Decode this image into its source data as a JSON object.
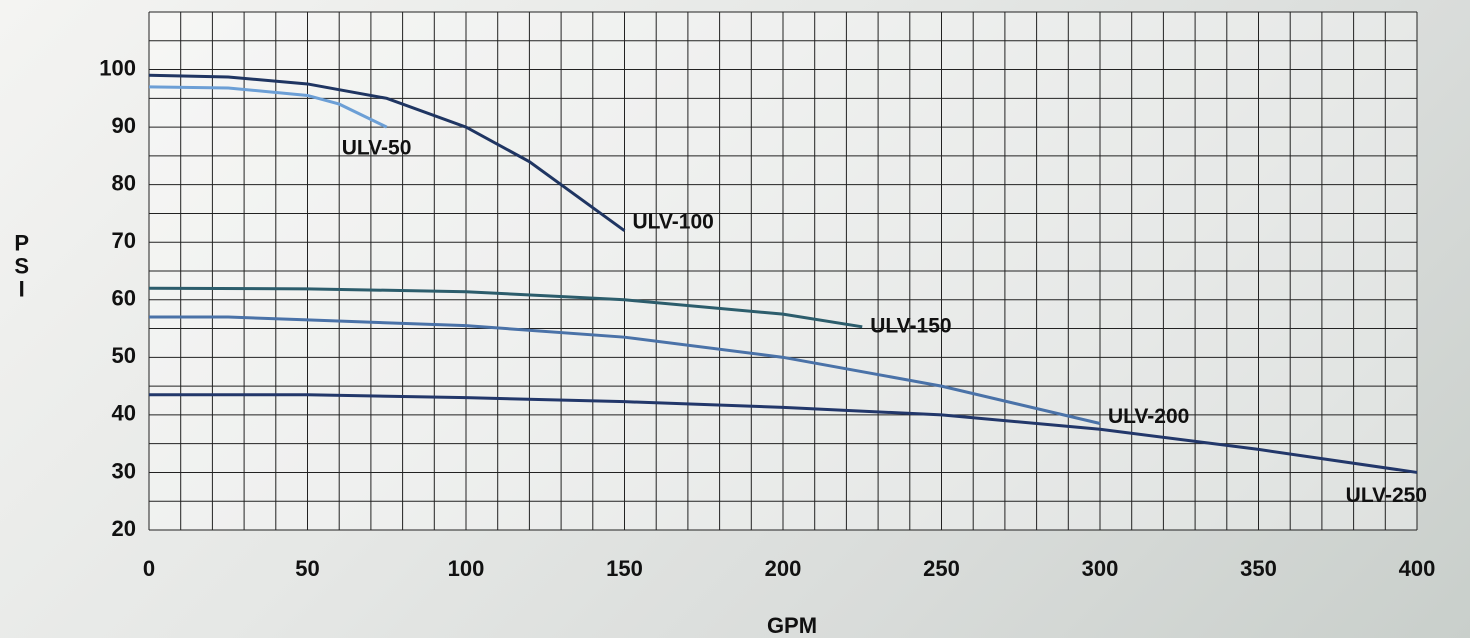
{
  "chart_data": {
    "type": "line",
    "x_label": "GPM",
    "y_label": "PSI",
    "xlim": [
      0,
      400
    ],
    "xticks": [
      0,
      50,
      100,
      150,
      200,
      250,
      300,
      350,
      400
    ],
    "ylim": [
      20,
      110
    ],
    "yticks": [
      20,
      30,
      40,
      50,
      60,
      70,
      80,
      90,
      100
    ],
    "grid": true,
    "minor_grid": {
      "x": 10,
      "y": 5
    },
    "series": [
      {
        "name": "ULV-50",
        "color": "#6c9fd6",
        "x": [
          0,
          25,
          50,
          60,
          75
        ],
        "values": [
          97,
          96.8,
          95.5,
          94,
          90
        ]
      },
      {
        "name": "ULV-100",
        "color": "#1f3562",
        "x": [
          0,
          25,
          50,
          75,
          100,
          120,
          135,
          150
        ],
        "values": [
          99,
          98.7,
          97.5,
          95,
          90,
          84,
          78,
          72
        ]
      },
      {
        "name": "ULV-150",
        "color": "#2c5d6c",
        "x": [
          0,
          50,
          100,
          150,
          200,
          225
        ],
        "values": [
          62,
          61.9,
          61.4,
          60,
          57.5,
          55.3
        ]
      },
      {
        "name": "ULV-200",
        "color": "#4a72a8",
        "x": [
          0,
          25,
          50,
          100,
          150,
          200,
          250,
          300
        ],
        "values": [
          57,
          57,
          56.5,
          55.5,
          53.5,
          50,
          45,
          38.5
        ]
      },
      {
        "name": "ULV-250",
        "color": "#22376a",
        "x": [
          0,
          50,
          100,
          150,
          200,
          250,
          300,
          350,
          400
        ],
        "values": [
          43.5,
          43.5,
          43,
          42.3,
          41.3,
          40,
          37.5,
          34,
          30
        ]
      }
    ]
  }
}
